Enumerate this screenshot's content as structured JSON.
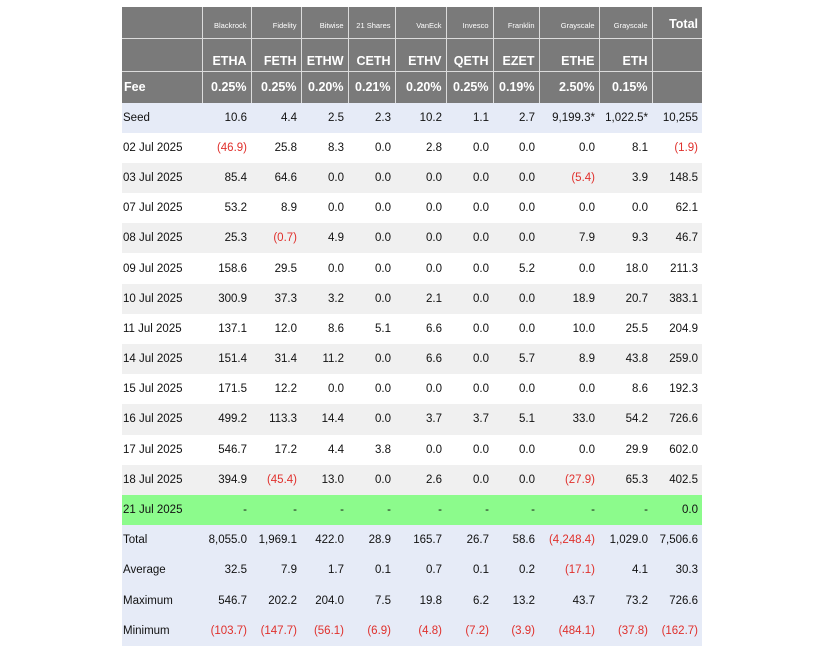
{
  "header": {
    "issuers": [
      "Blackrock",
      "Fidelity",
      "Bitwise",
      "21 Shares",
      "VanEck",
      "Invesco",
      "Franklin",
      "Grayscale",
      "Grayscale"
    ],
    "total_label": "Total",
    "tickers": [
      "ETHA",
      "FETH",
      "ETHW",
      "CETH",
      "ETHV",
      "QETH",
      "EZET",
      "ETHE",
      "ETH"
    ],
    "fee_label": "Fee",
    "fees": [
      "0.25%",
      "0.25%",
      "0.20%",
      "0.21%",
      "0.20%",
      "0.25%",
      "0.19%",
      "2.50%",
      "0.15%"
    ]
  },
  "rows": [
    {
      "label": "Seed",
      "style": "blue",
      "values": [
        "10.6",
        "4.4",
        "2.5",
        "2.3",
        "10.2",
        "1.1",
        "2.7",
        "9,199.3*",
        "1,022.5*",
        "10,255"
      ]
    },
    {
      "label": "02 Jul 2025",
      "style": "white",
      "values": [
        "(46.9)",
        "25.8",
        "8.3",
        "0.0",
        "2.8",
        "0.0",
        "0.0",
        "0.0",
        "8.1",
        "(1.9)"
      ]
    },
    {
      "label": "03 Jul 2025",
      "style": "grey",
      "values": [
        "85.4",
        "64.6",
        "0.0",
        "0.0",
        "0.0",
        "0.0",
        "0.0",
        "(5.4)",
        "3.9",
        "148.5"
      ]
    },
    {
      "label": "07 Jul 2025",
      "style": "white",
      "values": [
        "53.2",
        "8.9",
        "0.0",
        "0.0",
        "0.0",
        "0.0",
        "0.0",
        "0.0",
        "0.0",
        "62.1"
      ]
    },
    {
      "label": "08 Jul 2025",
      "style": "grey",
      "values": [
        "25.3",
        "(0.7)",
        "4.9",
        "0.0",
        "0.0",
        "0.0",
        "0.0",
        "7.9",
        "9.3",
        "46.7"
      ]
    },
    {
      "label": "09 Jul 2025",
      "style": "white",
      "values": [
        "158.6",
        "29.5",
        "0.0",
        "0.0",
        "0.0",
        "0.0",
        "5.2",
        "0.0",
        "18.0",
        "211.3"
      ]
    },
    {
      "label": "10 Jul 2025",
      "style": "grey",
      "values": [
        "300.9",
        "37.3",
        "3.2",
        "0.0",
        "2.1",
        "0.0",
        "0.0",
        "18.9",
        "20.7",
        "383.1"
      ]
    },
    {
      "label": "11 Jul 2025",
      "style": "white",
      "values": [
        "137.1",
        "12.0",
        "8.6",
        "5.1",
        "6.6",
        "0.0",
        "0.0",
        "10.0",
        "25.5",
        "204.9"
      ]
    },
    {
      "label": "14 Jul 2025",
      "style": "grey",
      "values": [
        "151.4",
        "31.4",
        "11.2",
        "0.0",
        "6.6",
        "0.0",
        "5.7",
        "8.9",
        "43.8",
        "259.0"
      ]
    },
    {
      "label": "15 Jul 2025",
      "style": "white",
      "values": [
        "171.5",
        "12.2",
        "0.0",
        "0.0",
        "0.0",
        "0.0",
        "0.0",
        "0.0",
        "8.6",
        "192.3"
      ]
    },
    {
      "label": "16 Jul 2025",
      "style": "grey",
      "values": [
        "499.2",
        "113.3",
        "14.4",
        "0.0",
        "3.7",
        "3.7",
        "5.1",
        "33.0",
        "54.2",
        "726.6"
      ]
    },
    {
      "label": "17 Jul 2025",
      "style": "white",
      "values": [
        "546.7",
        "17.2",
        "4.4",
        "3.8",
        "0.0",
        "0.0",
        "0.0",
        "0.0",
        "29.9",
        "602.0"
      ]
    },
    {
      "label": "18 Jul 2025",
      "style": "grey",
      "values": [
        "394.9",
        "(45.4)",
        "13.0",
        "0.0",
        "2.6",
        "0.0",
        "0.0",
        "(27.9)",
        "65.3",
        "402.5"
      ]
    },
    {
      "label": "21 Jul 2025",
      "style": "green",
      "values": [
        "-",
        "-",
        "-",
        "-",
        "-",
        "-",
        "-",
        "-",
        "-",
        "0.0"
      ]
    },
    {
      "label": "Total",
      "style": "blue",
      "values": [
        "8,055.0",
        "1,969.1",
        "422.0",
        "28.9",
        "165.7",
        "26.7",
        "58.6",
        "(4,248.4)",
        "1,029.0",
        "7,506.6"
      ]
    },
    {
      "label": "Average",
      "style": "blue",
      "values": [
        "32.5",
        "7.9",
        "1.7",
        "0.1",
        "0.7",
        "0.1",
        "0.2",
        "(17.1)",
        "4.1",
        "30.3"
      ]
    },
    {
      "label": "Maximum",
      "style": "blue",
      "values": [
        "546.7",
        "202.2",
        "204.0",
        "7.5",
        "19.8",
        "6.2",
        "13.2",
        "43.7",
        "73.2",
        "726.6"
      ]
    },
    {
      "label": "Minimum",
      "style": "blue",
      "values": [
        "(103.7)",
        "(147.7)",
        "(56.1)",
        "(6.9)",
        "(4.8)",
        "(7.2)",
        "(3.9)",
        "(484.1)",
        "(37.8)",
        "(162.7)"
      ]
    }
  ],
  "colors": {
    "header_bg": "#7a7a7a",
    "negative": "#e0302c",
    "highlight_row": "#8cfb8c",
    "summary_row": "#e6ebf7",
    "alt_row": "#f0f0f0"
  }
}
